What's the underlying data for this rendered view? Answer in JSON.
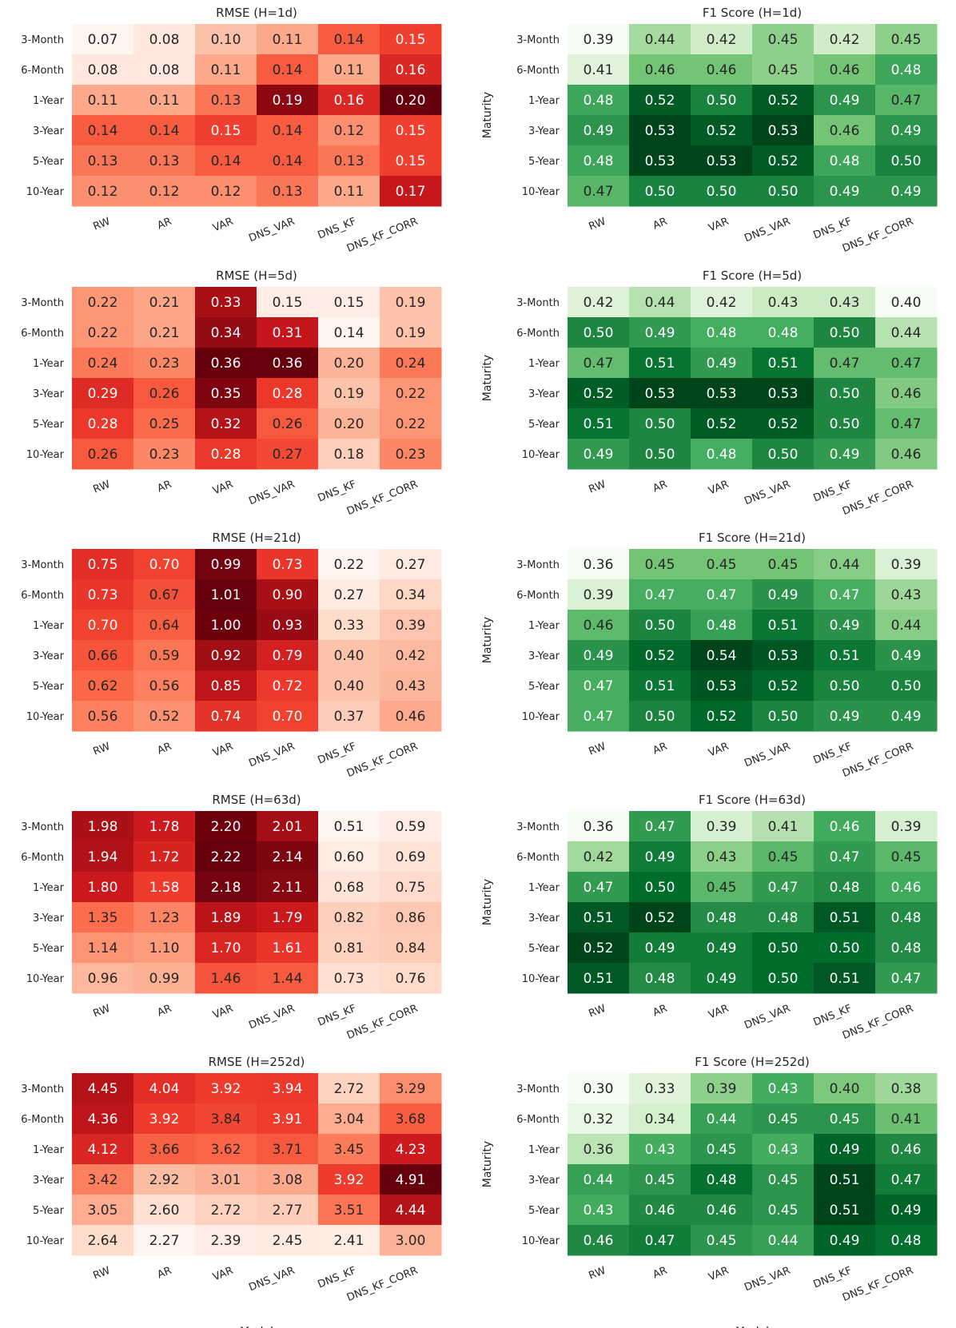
{
  "chart_data": [
    {
      "type": "heatmap",
      "metric": "RMSE",
      "title": "RMSE (H=1d)",
      "ylabel": "",
      "xlabel": "",
      "row_labels": [
        "3-Month",
        "6-Month",
        "1-Year",
        "3-Year",
        "5-Year",
        "10-Year"
      ],
      "col_labels": [
        "RW",
        "AR",
        "VAR",
        "DNS_VAR",
        "DNS_KF",
        "DNS_KF_CORR"
      ],
      "values": [
        [
          "0.07",
          "0.08",
          "0.10",
          "0.11",
          "0.14",
          "0.15"
        ],
        [
          "0.08",
          "0.08",
          "0.11",
          "0.14",
          "0.11",
          "0.16"
        ],
        [
          "0.11",
          "0.11",
          "0.13",
          "0.19",
          "0.16",
          "0.20"
        ],
        [
          "0.14",
          "0.14",
          "0.15",
          "0.14",
          "0.12",
          "0.15"
        ],
        [
          "0.13",
          "0.13",
          "0.14",
          "0.14",
          "0.13",
          "0.15"
        ],
        [
          "0.12",
          "0.12",
          "0.12",
          "0.13",
          "0.11",
          "0.17"
        ]
      ]
    },
    {
      "type": "heatmap",
      "metric": "F1",
      "title": "F1 Score (H=1d)",
      "ylabel": "Maturity",
      "xlabel": "",
      "row_labels": [
        "3-Month",
        "6-Month",
        "1-Year",
        "3-Year",
        "5-Year",
        "10-Year"
      ],
      "col_labels": [
        "RW",
        "AR",
        "VAR",
        "DNS_VAR",
        "DNS_KF",
        "DNS_KF_CORR"
      ],
      "values": [
        [
          "0.39",
          "0.44",
          "0.42",
          "0.45",
          "0.42",
          "0.45"
        ],
        [
          "0.41",
          "0.46",
          "0.46",
          "0.45",
          "0.46",
          "0.48"
        ],
        [
          "0.48",
          "0.52",
          "0.50",
          "0.52",
          "0.49",
          "0.47"
        ],
        [
          "0.49",
          "0.53",
          "0.52",
          "0.53",
          "0.46",
          "0.49"
        ],
        [
          "0.48",
          "0.53",
          "0.53",
          "0.52",
          "0.48",
          "0.50"
        ],
        [
          "0.47",
          "0.50",
          "0.50",
          "0.50",
          "0.49",
          "0.49"
        ]
      ]
    },
    {
      "type": "heatmap",
      "metric": "RMSE",
      "title": "RMSE (H=5d)",
      "ylabel": "",
      "xlabel": "",
      "row_labels": [
        "3-Month",
        "6-Month",
        "1-Year",
        "3-Year",
        "5-Year",
        "10-Year"
      ],
      "col_labels": [
        "RW",
        "AR",
        "VAR",
        "DNS_VAR",
        "DNS_KF",
        "DNS_KF_CORR"
      ],
      "values": [
        [
          "0.22",
          "0.21",
          "0.33",
          "0.15",
          "0.15",
          "0.19"
        ],
        [
          "0.22",
          "0.21",
          "0.34",
          "0.31",
          "0.14",
          "0.19"
        ],
        [
          "0.24",
          "0.23",
          "0.36",
          "0.36",
          "0.20",
          "0.24"
        ],
        [
          "0.29",
          "0.26",
          "0.35",
          "0.28",
          "0.19",
          "0.22"
        ],
        [
          "0.28",
          "0.25",
          "0.32",
          "0.26",
          "0.20",
          "0.22"
        ],
        [
          "0.26",
          "0.23",
          "0.28",
          "0.27",
          "0.18",
          "0.23"
        ]
      ]
    },
    {
      "type": "heatmap",
      "metric": "F1",
      "title": "F1 Score (H=5d)",
      "ylabel": "Maturity",
      "xlabel": "",
      "row_labels": [
        "3-Month",
        "6-Month",
        "1-Year",
        "3-Year",
        "5-Year",
        "10-Year"
      ],
      "col_labels": [
        "RW",
        "AR",
        "VAR",
        "DNS_VAR",
        "DNS_KF",
        "DNS_KF_CORR"
      ],
      "values": [
        [
          "0.42",
          "0.44",
          "0.42",
          "0.43",
          "0.43",
          "0.40"
        ],
        [
          "0.50",
          "0.49",
          "0.48",
          "0.48",
          "0.50",
          "0.44"
        ],
        [
          "0.47",
          "0.51",
          "0.49",
          "0.51",
          "0.47",
          "0.47"
        ],
        [
          "0.52",
          "0.53",
          "0.53",
          "0.53",
          "0.50",
          "0.46"
        ],
        [
          "0.51",
          "0.50",
          "0.52",
          "0.52",
          "0.50",
          "0.47"
        ],
        [
          "0.49",
          "0.50",
          "0.48",
          "0.50",
          "0.49",
          "0.46"
        ]
      ]
    },
    {
      "type": "heatmap",
      "metric": "RMSE",
      "title": "RMSE (H=21d)",
      "ylabel": "Maturity",
      "xlabel": "",
      "row_labels": [
        "3-Month",
        "6-Month",
        "1-Year",
        "3-Year",
        "5-Year",
        "10-Year"
      ],
      "col_labels": [
        "RW",
        "AR",
        "VAR",
        "DNS_VAR",
        "DNS_KF",
        "DNS_KF_CORR"
      ],
      "values": [
        [
          "0.75",
          "0.70",
          "0.99",
          "0.73",
          "0.22",
          "0.27"
        ],
        [
          "0.73",
          "0.67",
          "1.01",
          "0.90",
          "0.27",
          "0.34"
        ],
        [
          "0.70",
          "0.64",
          "1.00",
          "0.93",
          "0.33",
          "0.39"
        ],
        [
          "0.66",
          "0.59",
          "0.92",
          "0.79",
          "0.40",
          "0.42"
        ],
        [
          "0.62",
          "0.56",
          "0.85",
          "0.72",
          "0.40",
          "0.43"
        ],
        [
          "0.56",
          "0.52",
          "0.74",
          "0.70",
          "0.37",
          "0.46"
        ]
      ]
    },
    {
      "type": "heatmap",
      "metric": "F1",
      "title": "F1 Score (H=21d)",
      "ylabel": "Maturity",
      "xlabel": "",
      "row_labels": [
        "3-Month",
        "6-Month",
        "1-Year",
        "3-Year",
        "5-Year",
        "10-Year"
      ],
      "col_labels": [
        "RW",
        "AR",
        "VAR",
        "DNS_VAR",
        "DNS_KF",
        "DNS_KF_CORR"
      ],
      "values": [
        [
          "0.36",
          "0.45",
          "0.45",
          "0.45",
          "0.44",
          "0.39"
        ],
        [
          "0.39",
          "0.47",
          "0.47",
          "0.49",
          "0.47",
          "0.43"
        ],
        [
          "0.46",
          "0.50",
          "0.48",
          "0.51",
          "0.49",
          "0.44"
        ],
        [
          "0.49",
          "0.52",
          "0.54",
          "0.53",
          "0.51",
          "0.49"
        ],
        [
          "0.47",
          "0.51",
          "0.53",
          "0.52",
          "0.50",
          "0.50"
        ],
        [
          "0.47",
          "0.50",
          "0.52",
          "0.50",
          "0.49",
          "0.49"
        ]
      ]
    },
    {
      "type": "heatmap",
      "metric": "RMSE",
      "title": "RMSE (H=63d)",
      "ylabel": "Maturity",
      "xlabel": "",
      "row_labels": [
        "3-Month",
        "6-Month",
        "1-Year",
        "3-Year",
        "5-Year",
        "10-Year"
      ],
      "col_labels": [
        "RW",
        "AR",
        "VAR",
        "DNS_VAR",
        "DNS_KF",
        "DNS_KF_CORR"
      ],
      "values": [
        [
          "1.98",
          "1.78",
          "2.20",
          "2.01",
          "0.51",
          "0.59"
        ],
        [
          "1.94",
          "1.72",
          "2.22",
          "2.14",
          "0.60",
          "0.69"
        ],
        [
          "1.80",
          "1.58",
          "2.18",
          "2.11",
          "0.68",
          "0.75"
        ],
        [
          "1.35",
          "1.23",
          "1.89",
          "1.79",
          "0.82",
          "0.86"
        ],
        [
          "1.14",
          "1.10",
          "1.70",
          "1.61",
          "0.81",
          "0.84"
        ],
        [
          "0.96",
          "0.99",
          "1.46",
          "1.44",
          "0.73",
          "0.76"
        ]
      ]
    },
    {
      "type": "heatmap",
      "metric": "F1",
      "title": "F1 Score (H=63d)",
      "ylabel": "Maturity",
      "xlabel": "",
      "row_labels": [
        "3-Month",
        "6-Month",
        "1-Year",
        "3-Year",
        "5-Year",
        "10-Year"
      ],
      "col_labels": [
        "RW",
        "AR",
        "VAR",
        "DNS_VAR",
        "DNS_KF",
        "DNS_KF_CORR"
      ],
      "values": [
        [
          "0.36",
          "0.47",
          "0.39",
          "0.41",
          "0.46",
          "0.39"
        ],
        [
          "0.42",
          "0.49",
          "0.43",
          "0.45",
          "0.47",
          "0.45"
        ],
        [
          "0.47",
          "0.50",
          "0.45",
          "0.47",
          "0.48",
          "0.46"
        ],
        [
          "0.51",
          "0.52",
          "0.48",
          "0.48",
          "0.51",
          "0.48"
        ],
        [
          "0.52",
          "0.49",
          "0.49",
          "0.50",
          "0.50",
          "0.48"
        ],
        [
          "0.51",
          "0.48",
          "0.49",
          "0.50",
          "0.51",
          "0.47"
        ]
      ]
    },
    {
      "type": "heatmap",
      "metric": "RMSE",
      "title": "RMSE (H=252d)",
      "ylabel": "Maturity",
      "xlabel": "Model",
      "row_labels": [
        "3-Month",
        "6-Month",
        "1-Year",
        "3-Year",
        "5-Year",
        "10-Year"
      ],
      "col_labels": [
        "RW",
        "AR",
        "VAR",
        "DNS_VAR",
        "DNS_KF",
        "DNS_KF_CORR"
      ],
      "values": [
        [
          "4.45",
          "4.04",
          "3.92",
          "3.94",
          "2.72",
          "3.29"
        ],
        [
          "4.36",
          "3.92",
          "3.84",
          "3.91",
          "3.04",
          "3.68"
        ],
        [
          "4.12",
          "3.66",
          "3.62",
          "3.71",
          "3.45",
          "4.23"
        ],
        [
          "3.42",
          "2.92",
          "3.01",
          "3.08",
          "3.92",
          "4.91"
        ],
        [
          "3.05",
          "2.60",
          "2.72",
          "2.77",
          "3.51",
          "4.44"
        ],
        [
          "2.64",
          "2.27",
          "2.39",
          "2.45",
          "2.41",
          "3.00"
        ]
      ]
    },
    {
      "type": "heatmap",
      "metric": "F1",
      "title": "F1 Score (H=252d)",
      "ylabel": "Maturity",
      "xlabel": "Model",
      "row_labels": [
        "3-Month",
        "6-Month",
        "1-Year",
        "3-Year",
        "5-Year",
        "10-Year"
      ],
      "col_labels": [
        "RW",
        "AR",
        "VAR",
        "DNS_VAR",
        "DNS_KF",
        "DNS_KF_CORR"
      ],
      "values": [
        [
          "0.30",
          "0.33",
          "0.39",
          "0.43",
          "0.40",
          "0.38"
        ],
        [
          "0.32",
          "0.34",
          "0.44",
          "0.45",
          "0.45",
          "0.41"
        ],
        [
          "0.36",
          "0.43",
          "0.45",
          "0.43",
          "0.49",
          "0.46"
        ],
        [
          "0.44",
          "0.45",
          "0.48",
          "0.45",
          "0.51",
          "0.47"
        ],
        [
          "0.43",
          "0.46",
          "0.46",
          "0.45",
          "0.51",
          "0.49"
        ],
        [
          "0.46",
          "0.47",
          "0.45",
          "0.44",
          "0.49",
          "0.48"
        ]
      ]
    }
  ],
  "colors": {
    "rmse_scale": [
      "#fff5f0",
      "#fee0d2",
      "#fcbba1",
      "#fc9272",
      "#fb6a4a",
      "#ef3b2c",
      "#cb181d",
      "#a50f15",
      "#67000d"
    ],
    "f1_scale": [
      "#f7fcf5",
      "#e5f5e0",
      "#c7e9c0",
      "#a1d99b",
      "#74c476",
      "#41ab5d",
      "#238b45",
      "#006d2c",
      "#00441b"
    ],
    "text_dark": "#262626",
    "text_light": "#ffffff",
    "axis_text": "#262626"
  }
}
